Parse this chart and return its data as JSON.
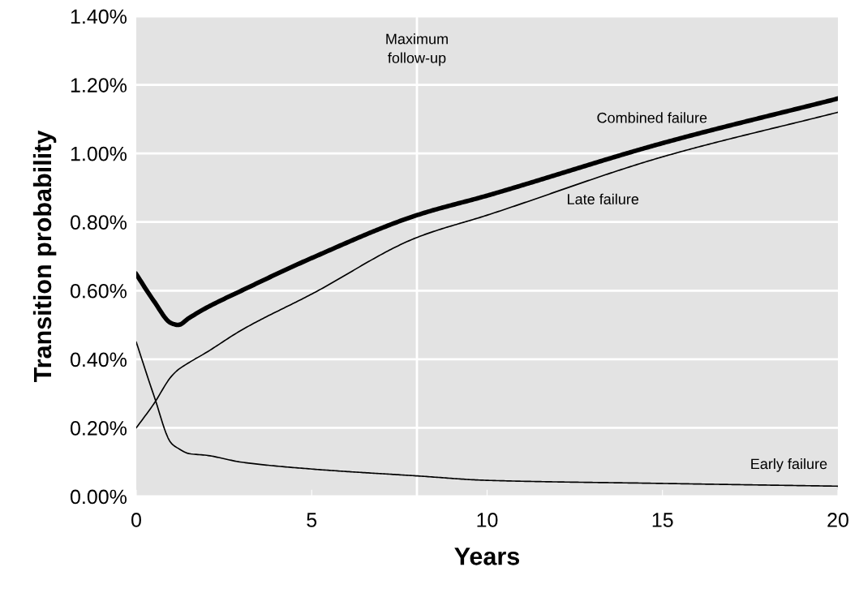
{
  "chart_data": {
    "type": "line",
    "xlabel": "Years",
    "ylabel": "Transition probability",
    "xlim": [
      0,
      20
    ],
    "xticks": [
      0,
      5,
      10,
      15,
      20
    ],
    "ylim": [
      0,
      1.4
    ],
    "yticks": [
      {
        "value": 0,
        "label": "0.00%"
      },
      {
        "value": 0.2,
        "label": "0.20%"
      },
      {
        "value": 0.4,
        "label": "0.40%"
      },
      {
        "value": 0.6,
        "label": "0.60%"
      },
      {
        "value": 0.8,
        "label": "0.80%"
      },
      {
        "value": 1.0,
        "label": "1.00%"
      },
      {
        "value": 1.2,
        "label": "1.20%"
      },
      {
        "value": 1.4,
        "label": "1.40%"
      }
    ],
    "grid": "y",
    "legend": false,
    "marker": "none",
    "line_style": "solid",
    "x": [
      0,
      0.5,
      1,
      1.2,
      1.5,
      2,
      3,
      5,
      8,
      10,
      15,
      20
    ],
    "series": [
      {
        "name": "Combined failure",
        "color": "#000000",
        "values": [
          0.648,
          0.57,
          0.505,
          0.5,
          0.52,
          0.55,
          0.6,
          0.695,
          0.82,
          0.877,
          1.03,
          1.16
        ]
      },
      {
        "name": "Late failure",
        "color": "#000000",
        "values": [
          0.2,
          0.27,
          0.35,
          0.37,
          0.39,
          0.42,
          0.485,
          0.59,
          0.755,
          0.82,
          0.99,
          1.12
        ]
      },
      {
        "name": "Early failure",
        "color": "#000000",
        "values": [
          0.45,
          0.295,
          0.155,
          0.14,
          0.125,
          0.12,
          0.1,
          0.08,
          0.06,
          0.047,
          0.038,
          0.03
        ]
      }
    ],
    "ref_lines": [
      {
        "axis": "x",
        "value": 8,
        "label": "Maximum\nfollow-up",
        "color": "#ffffff"
      }
    ]
  }
}
